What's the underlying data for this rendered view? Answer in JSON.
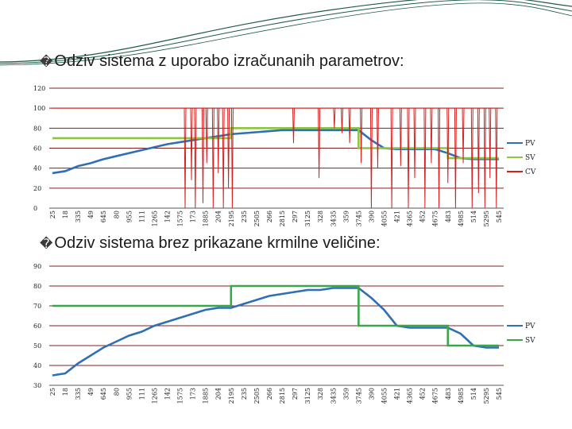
{
  "slide": {
    "glyph": "�",
    "heading1": "Odziv sistema z uporabo izračunanih parametrov:",
    "heading2": "Odziv sistema brez prikazane krmilne veličine:"
  },
  "colors": {
    "pv": "#2f6fb5",
    "sv": "#8cc63f",
    "sv2": "#3aa64c",
    "cv": "#d62020",
    "grid": "#7f2020",
    "deco": "#1f5c46"
  },
  "chart_data": [
    {
      "type": "line",
      "categories": [
        "25",
        "18",
        "335",
        "49",
        "645",
        "80",
        "955",
        "111",
        "1265",
        "142",
        "1575",
        "173",
        "1885",
        "204",
        "2195",
        "235",
        "2505",
        "266",
        "2815",
        "297",
        "3125",
        "328",
        "3435",
        "359",
        "3745",
        "390",
        "4055",
        "421",
        "4365",
        "452",
        "4675",
        "483",
        "4985",
        "514",
        "5295",
        "545"
      ],
      "ylim": [
        0,
        120
      ],
      "yticks": [
        "0",
        "20",
        "40",
        "60",
        "80",
        "100",
        "120"
      ],
      "legend": "right",
      "grid": true,
      "series": [
        {
          "name": "PV",
          "values": [
            35,
            37,
            42,
            45,
            49,
            52,
            55,
            58,
            61,
            64,
            66,
            68,
            70,
            72,
            74,
            75,
            76,
            77,
            78,
            78,
            78,
            78,
            78,
            78,
            78,
            68,
            60,
            59,
            59,
            59,
            59,
            55,
            50,
            49,
            49,
            49
          ]
        },
        {
          "name": "SV",
          "values": [
            70,
            70,
            70,
            70,
            70,
            70,
            70,
            70,
            70,
            70,
            70,
            70,
            70,
            70,
            80,
            80,
            80,
            80,
            80,
            80,
            80,
            80,
            80,
            80,
            60,
            60,
            60,
            60,
            60,
            60,
            60,
            50,
            50,
            50,
            50,
            50
          ]
        },
        {
          "name": "CV",
          "values": [
            100,
            100,
            100,
            100,
            100,
            100,
            100,
            100,
            100,
            100,
            100,
            100,
            100,
            100,
            100,
            100,
            100,
            100,
            100,
            100,
            100,
            100,
            100,
            100,
            100,
            100,
            100,
            100,
            100,
            100,
            100,
            100,
            100,
            100,
            100,
            100
          ],
          "dips": [
            [
              10.4,
              0
            ],
            [
              10.9,
              28
            ],
            [
              11.2,
              0
            ],
            [
              11.8,
              5
            ],
            [
              12.1,
              45
            ],
            [
              12.6,
              0
            ],
            [
              13.0,
              35
            ],
            [
              13.4,
              0
            ],
            [
              13.8,
              20
            ],
            [
              14.1,
              0
            ],
            [
              18.9,
              65
            ],
            [
              20.9,
              30
            ],
            [
              22.1,
              80
            ],
            [
              22.7,
              75
            ],
            [
              23.3,
              65
            ],
            [
              24.2,
              45
            ],
            [
              25.0,
              0
            ],
            [
              25.5,
              40
            ],
            [
              26.6,
              0
            ],
            [
              27.3,
              42
            ],
            [
              27.9,
              0
            ],
            [
              28.4,
              30
            ],
            [
              29.2,
              0
            ],
            [
              29.7,
              45
            ],
            [
              30.3,
              0
            ],
            [
              31.0,
              25
            ],
            [
              31.6,
              0
            ],
            [
              32.2,
              45
            ],
            [
              32.9,
              0
            ],
            [
              33.4,
              15
            ],
            [
              33.9,
              0
            ],
            [
              34.3,
              30
            ],
            [
              34.8,
              0
            ]
          ]
        }
      ]
    },
    {
      "type": "line",
      "categories": [
        "25",
        "18",
        "335",
        "49",
        "645",
        "80",
        "955",
        "111",
        "1265",
        "142",
        "1575",
        "173",
        "1885",
        "204",
        "2195",
        "235",
        "2505",
        "266",
        "2815",
        "297",
        "3125",
        "328",
        "3435",
        "359",
        "3745",
        "390",
        "4055",
        "421",
        "4365",
        "452",
        "4675",
        "483",
        "4985",
        "514",
        "5295",
        "545"
      ],
      "ylim": [
        30,
        90
      ],
      "yticks": [
        "30",
        "40",
        "50",
        "60",
        "70",
        "80",
        "90"
      ],
      "legend": "right",
      "grid": true,
      "series": [
        {
          "name": "PV",
          "values": [
            35,
            36,
            41,
            45,
            49,
            52,
            55,
            57,
            60,
            62,
            64,
            66,
            68,
            69,
            69,
            71,
            73,
            75,
            76,
            77,
            78,
            78,
            79,
            79,
            79,
            74,
            68,
            60,
            59,
            59,
            59,
            59,
            56,
            50,
            49,
            49
          ]
        },
        {
          "name": "SV",
          "values": [
            70,
            70,
            70,
            70,
            70,
            70,
            70,
            70,
            70,
            70,
            70,
            70,
            70,
            70,
            80,
            80,
            80,
            80,
            80,
            80,
            80,
            80,
            80,
            80,
            60,
            60,
            60,
            60,
            60,
            60,
            60,
            50,
            50,
            50,
            50,
            50
          ]
        }
      ]
    }
  ]
}
